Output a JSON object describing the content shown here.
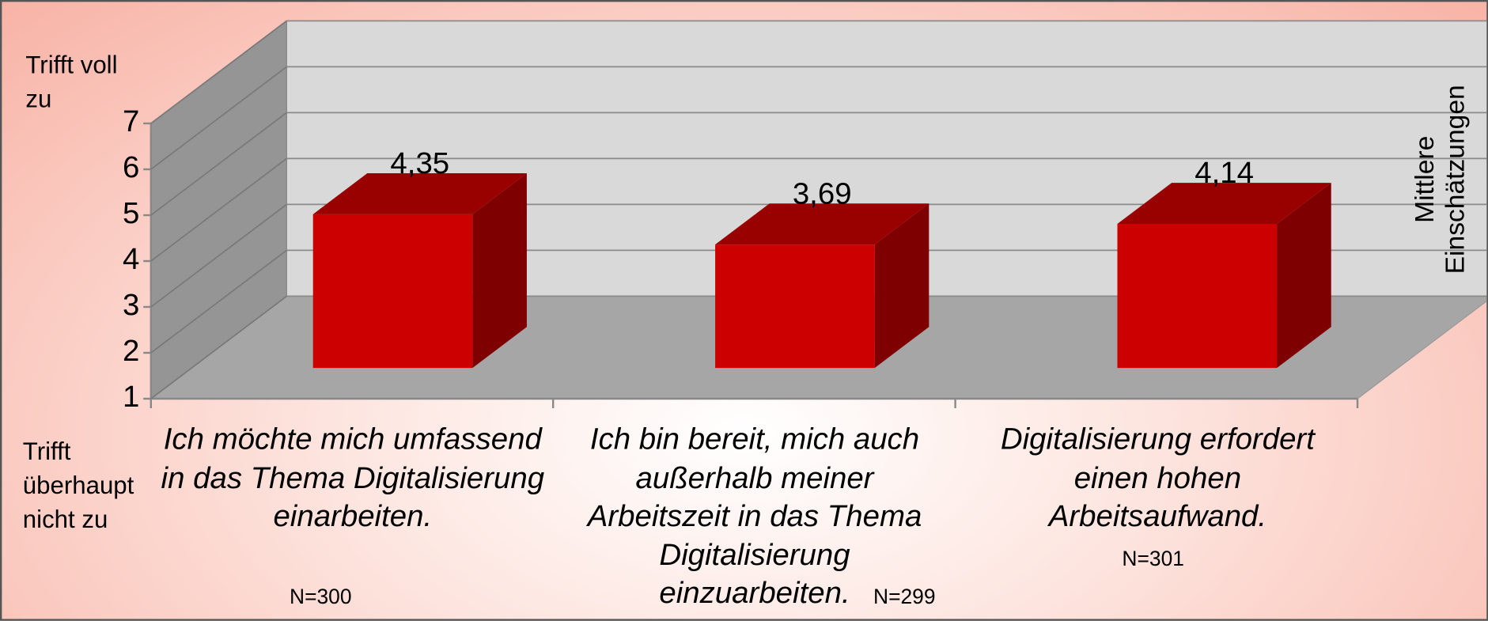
{
  "chart_data": {
    "type": "bar3d",
    "y_label_top": "Trifft voll zu",
    "y_label_bottom": "Trifft überhaupt nicht zu",
    "categories": [
      "Ich möchte mich umfassend in das Thema Digitalisierung einarbeiten.",
      "Ich bin bereit, mich auch außerhalb meiner Arbeitszeit in das Thema Digitalisierung einzuarbeiten.",
      "Digitalisierung erfordert einen hohen Arbeitsaufwand."
    ],
    "series": [
      {
        "name": "Mittlere Einschätzungen",
        "color": "#cc0000",
        "values": [
          4.35,
          3.69,
          4.14
        ],
        "value_labels": [
          "4,35",
          "3,69",
          "4,14"
        ]
      }
    ],
    "annotations": [
      "N=300",
      "N=299",
      "N=301"
    ],
    "ylim": [
      1,
      7
    ],
    "yticks": [
      1,
      2,
      3,
      4,
      5,
      6,
      7
    ],
    "grid": true
  }
}
